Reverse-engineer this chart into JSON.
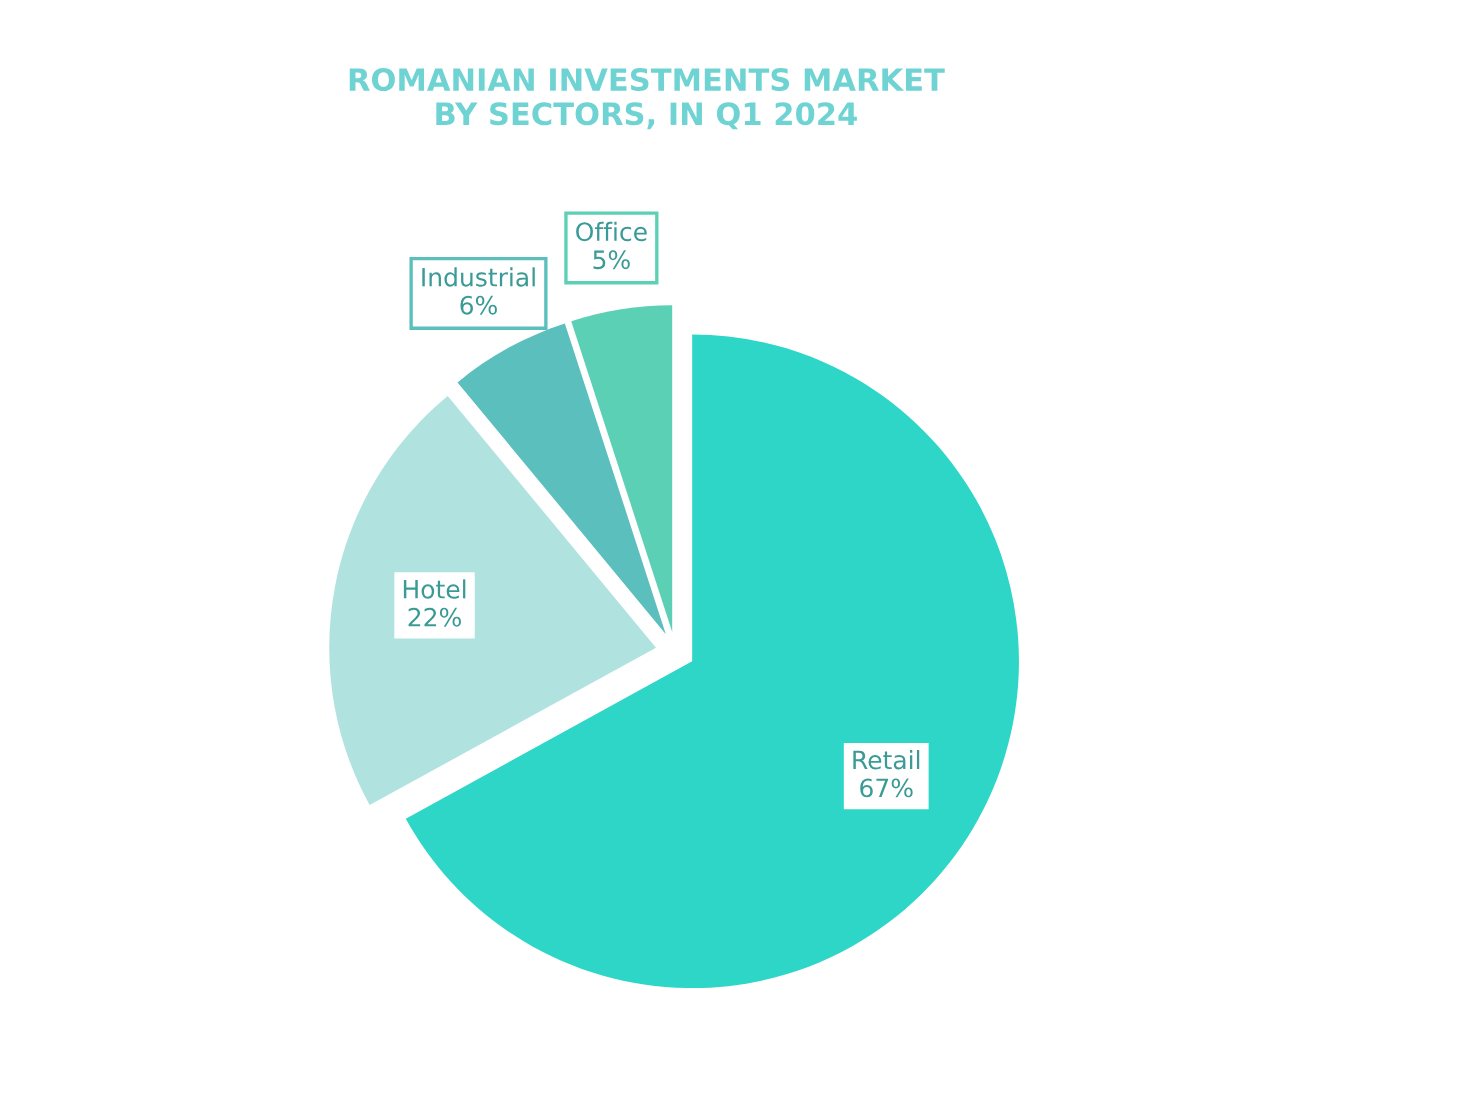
{
  "chart_data": {
    "type": "pie",
    "title": "ROMANIAN INVESTMENTS MARKET\nBY SECTORS, IN Q1 2024",
    "categories": [
      "Retail",
      "Hotel",
      "Industrial",
      "Office"
    ],
    "values": [
      67,
      22,
      6,
      5
    ],
    "value_labels": [
      "67%",
      "22%",
      "6%",
      "5%"
    ],
    "colors": [
      "#2ed6c8",
      "#b0e3e0",
      "#5bbfbd",
      "#5cd0b5"
    ]
  }
}
